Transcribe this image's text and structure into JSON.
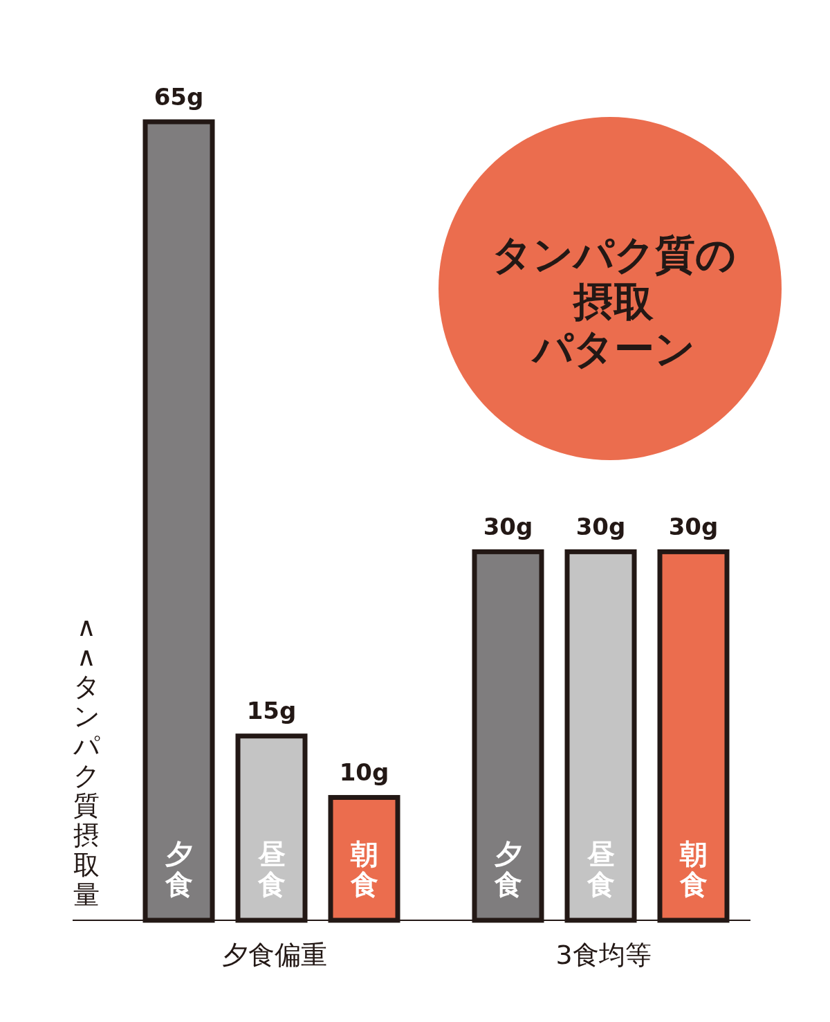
{
  "chart_data": {
    "type": "bar",
    "title": "タンパク質の摂取パターン",
    "ylabel": "∧∧タンパク質摂取量",
    "categories": [
      "夕食偏重",
      "3食均等"
    ],
    "series": [
      {
        "name": "夕食",
        "color": "#7f7d7e",
        "values": [
          65,
          30
        ],
        "value_labels": [
          "65g",
          "30g"
        ]
      },
      {
        "name": "昼食",
        "color": "#c4c4c4",
        "values": [
          15,
          30
        ],
        "value_labels": [
          "15g",
          "30g"
        ]
      },
      {
        "name": "朝食",
        "color": "#eb6d4e",
        "values": [
          10,
          30
        ],
        "value_labels": [
          "10g",
          "30g"
        ]
      }
    ]
  }
}
